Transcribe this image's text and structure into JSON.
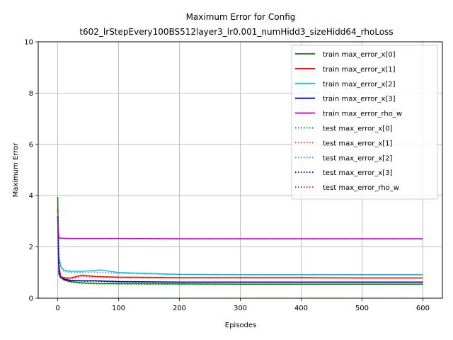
{
  "chart_data": {
    "type": "line",
    "title": "Maximum Error for Config",
    "subtitle": "t602_lrStepEvery100BS512layer3_lr0.001_numHidd3_sizeHidd64_rhoLoss",
    "xlabel": "Episodes",
    "ylabel": "Maximum Error",
    "xlim": [
      -32,
      632
    ],
    "ylim": [
      0,
      10
    ],
    "xticks": [
      0,
      100,
      200,
      300,
      400,
      500,
      600
    ],
    "yticks": [
      0,
      2,
      4,
      6,
      8,
      10
    ],
    "grid": true,
    "legend_position": "top-right",
    "series": [
      {
        "name": "train max_error_x[0]",
        "color": "#008000",
        "style": "solid",
        "x": [
          0,
          2,
          5,
          10,
          20,
          40,
          60,
          100,
          200,
          300,
          400,
          500,
          600
        ],
        "y": [
          3.95,
          1.3,
          0.85,
          0.72,
          0.65,
          0.6,
          0.58,
          0.57,
          0.56,
          0.55,
          0.55,
          0.55,
          0.55
        ]
      },
      {
        "name": "train max_error_x[1]",
        "color": "#ff0000",
        "style": "solid",
        "x": [
          0,
          2,
          5,
          10,
          20,
          40,
          60,
          100,
          200,
          300,
          400,
          500,
          600
        ],
        "y": [
          3.5,
          1.2,
          0.85,
          0.8,
          0.78,
          0.9,
          0.85,
          0.82,
          0.8,
          0.8,
          0.8,
          0.79,
          0.79
        ]
      },
      {
        "name": "train max_error_x[2]",
        "color": "#17becf",
        "style": "solid",
        "x": [
          0,
          2,
          5,
          10,
          20,
          40,
          60,
          70,
          100,
          200,
          300,
          400,
          500,
          600
        ],
        "y": [
          3.3,
          1.6,
          1.25,
          1.1,
          1.05,
          1.05,
          1.08,
          1.1,
          1.0,
          0.93,
          0.92,
          0.92,
          0.92,
          0.92
        ]
      },
      {
        "name": "train max_error_x[3]",
        "color": "#0000cc",
        "style": "solid",
        "x": [
          0,
          2,
          5,
          10,
          20,
          40,
          60,
          100,
          200,
          300,
          400,
          500,
          600
        ],
        "y": [
          3.2,
          0.95,
          0.8,
          0.75,
          0.7,
          0.68,
          0.68,
          0.65,
          0.63,
          0.63,
          0.63,
          0.63,
          0.63
        ]
      },
      {
        "name": "train max_error_rho_w",
        "color": "#c000c0",
        "style": "solid",
        "x": [
          0,
          2,
          5,
          20,
          60,
          100,
          200,
          300,
          400,
          500,
          600
        ],
        "y": [
          3.0,
          2.35,
          2.34,
          2.33,
          2.33,
          2.33,
          2.32,
          2.32,
          2.32,
          2.32,
          2.32
        ]
      },
      {
        "name": "test max_error_x[0]",
        "color": "#008000",
        "style": "dotted",
        "x": [
          0,
          2,
          5,
          10,
          20,
          40,
          60,
          100,
          200,
          300,
          400,
          500,
          600
        ],
        "y": [
          3.9,
          1.25,
          0.82,
          0.7,
          0.63,
          0.58,
          0.56,
          0.55,
          0.54,
          0.54,
          0.54,
          0.54,
          0.54
        ]
      },
      {
        "name": "test max_error_x[1]",
        "color": "#ff2a00",
        "style": "dotted",
        "x": [
          0,
          2,
          5,
          10,
          20,
          40,
          60,
          100,
          200,
          300,
          400,
          500,
          600
        ],
        "y": [
          3.45,
          1.15,
          0.82,
          0.78,
          0.76,
          0.85,
          0.82,
          0.8,
          0.79,
          0.79,
          0.79,
          0.78,
          0.78
        ]
      },
      {
        "name": "test max_error_x[2]",
        "color": "#1ba1e2",
        "style": "dotted",
        "x": [
          0,
          2,
          5,
          10,
          20,
          40,
          60,
          100,
          200,
          300,
          400,
          500,
          600
        ],
        "y": [
          3.25,
          1.5,
          1.2,
          1.05,
          1.0,
          1.0,
          1.02,
          0.97,
          0.92,
          0.91,
          0.91,
          0.91,
          0.91
        ]
      },
      {
        "name": "test max_error_x[3]",
        "color": "#0000cc",
        "style": "dotted",
        "x": [
          0,
          2,
          5,
          10,
          20,
          40,
          60,
          100,
          200,
          300,
          400,
          500,
          600
        ],
        "y": [
          3.15,
          0.92,
          0.78,
          0.73,
          0.68,
          0.66,
          0.66,
          0.63,
          0.62,
          0.62,
          0.62,
          0.62,
          0.62
        ]
      },
      {
        "name": "test max_error_rho_w",
        "color": "#c000c0",
        "style": "dotted",
        "x": [
          0,
          2,
          5,
          20,
          60,
          100,
          200,
          300,
          400,
          500,
          600
        ],
        "y": [
          2.95,
          2.34,
          2.33,
          2.32,
          2.32,
          2.32,
          2.31,
          2.31,
          2.31,
          2.31,
          2.31
        ]
      }
    ]
  }
}
